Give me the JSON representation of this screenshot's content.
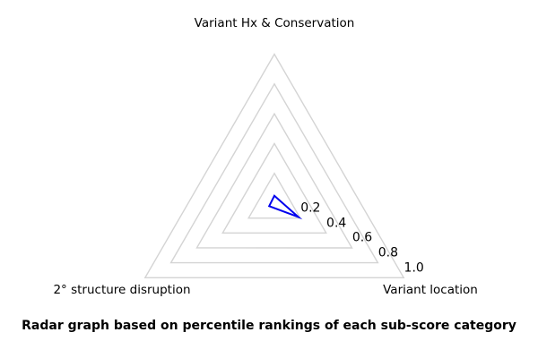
{
  "chart_data": {
    "type": "radar",
    "categories": [
      "Variant Hx & Conservation",
      "2° structure disruption",
      "Variant location"
    ],
    "axis_angles_deg": [
      90,
      210,
      330
    ],
    "series": [
      {
        "color": "#0000ee",
        "values": [
          0.05,
          0.04,
          0.185
        ]
      }
    ],
    "ticks": [
      0.2,
      0.4,
      0.6,
      0.8,
      1.0
    ],
    "tick_labels": [
      "0.2",
      "0.4",
      "0.6",
      "0.8",
      "1.0"
    ],
    "rlim": [
      0,
      1.0
    ],
    "grid": true,
    "grid_shape": "triangle",
    "grid_color": "#d4d4d4",
    "legend": false,
    "title": "",
    "caption": "Radar graph based on percentile rankings of each sub-score category"
  }
}
